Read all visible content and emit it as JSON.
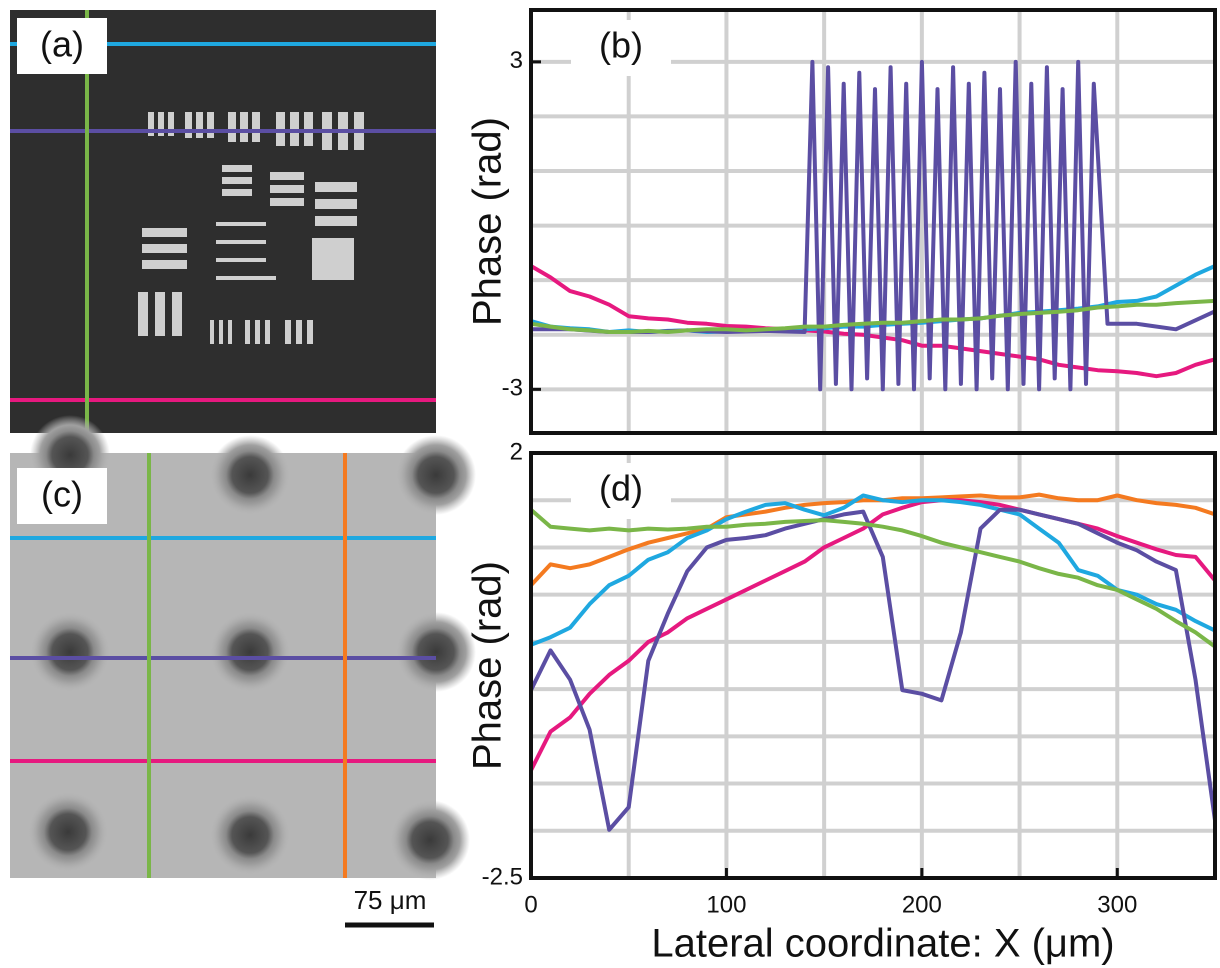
{
  "panels": {
    "a": {
      "label": "(a)"
    },
    "c": {
      "label": "(c)",
      "scale_bar": "75 μm"
    }
  },
  "chart_data": [
    {
      "type": "line",
      "label": "(b)",
      "ylabel": "Phase (rad)",
      "xlim": [
        0,
        350
      ],
      "ylim": [
        -3.8,
        3.95
      ],
      "yticks": [
        -3,
        3
      ],
      "xgrid": [
        0,
        50,
        100,
        150,
        200,
        250,
        300,
        350
      ],
      "ygrid": [
        -3,
        -2,
        -1,
        0,
        1,
        2,
        3
      ],
      "x": [
        0,
        10,
        20,
        30,
        40,
        50,
        60,
        70,
        80,
        90,
        100,
        110,
        120,
        130,
        140,
        150,
        160,
        170,
        180,
        190,
        200,
        210,
        220,
        230,
        240,
        250,
        260,
        270,
        280,
        290,
        300,
        310,
        320,
        330,
        340,
        350
      ],
      "series": [
        {
          "color": "#e6197f",
          "values": [
            -0.74,
            -0.95,
            -1.2,
            -1.3,
            -1.45,
            -1.66,
            -1.7,
            -1.72,
            -1.78,
            -1.8,
            -1.84,
            -1.85,
            -1.88,
            -1.9,
            -1.92,
            -1.94,
            -1.98,
            -2.0,
            -2.05,
            -2.1,
            -2.2,
            -2.2,
            -2.25,
            -2.3,
            -2.35,
            -2.4,
            -2.45,
            -2.55,
            -2.6,
            -2.65,
            -2.67,
            -2.7,
            -2.76,
            -2.7,
            -2.55,
            -2.45
          ]
        },
        {
          "color": "#1fa8e0",
          "values": [
            -1.75,
            -1.85,
            -1.88,
            -1.9,
            -1.95,
            -1.92,
            -1.95,
            -1.93,
            -1.92,
            -1.95,
            -1.94,
            -1.93,
            -1.92,
            -1.9,
            -1.9,
            -1.88,
            -1.85,
            -1.85,
            -1.82,
            -1.8,
            -1.78,
            -1.75,
            -1.72,
            -1.7,
            -1.65,
            -1.6,
            -1.58,
            -1.55,
            -1.52,
            -1.48,
            -1.4,
            -1.38,
            -1.3,
            -1.1,
            -0.9,
            -0.74
          ]
        },
        {
          "color": "#5b4ea3",
          "x": [
            0,
            20,
            40,
            60,
            80,
            100,
            120,
            140,
            144,
            148,
            152,
            156,
            160,
            164,
            168,
            172,
            176,
            180,
            184,
            188,
            192,
            196,
            200,
            204,
            208,
            212,
            216,
            220,
            224,
            228,
            232,
            236,
            240,
            244,
            248,
            252,
            256,
            260,
            264,
            268,
            272,
            276,
            280,
            284,
            288,
            295,
            310,
            330,
            350
          ],
          "values": [
            -1.9,
            -1.9,
            -1.95,
            -1.95,
            -1.92,
            -1.95,
            -1.93,
            -1.95,
            3,
            -3,
            2.9,
            -2.9,
            2.6,
            -3,
            2.8,
            -2.8,
            2.5,
            -3,
            2.9,
            -2.9,
            2.6,
            -3,
            3,
            -2.8,
            2.5,
            -3,
            2.9,
            -2.9,
            2.6,
            -3,
            2.8,
            -2.8,
            2.5,
            -3,
            3,
            -2.9,
            2.6,
            -3,
            2.9,
            -2.8,
            2.5,
            -3,
            3,
            -2.9,
            2.6,
            -1.8,
            -1.8,
            -1.9,
            -1.57
          ]
        },
        {
          "color": "#7ab648",
          "values": [
            -1.8,
            -1.85,
            -1.9,
            -1.92,
            -1.95,
            -1.95,
            -1.93,
            -1.95,
            -1.92,
            -1.9,
            -1.9,
            -1.92,
            -1.9,
            -1.88,
            -1.85,
            -1.85,
            -1.82,
            -1.8,
            -1.78,
            -1.78,
            -1.75,
            -1.72,
            -1.72,
            -1.7,
            -1.65,
            -1.62,
            -1.6,
            -1.58,
            -1.55,
            -1.5,
            -1.48,
            -1.45,
            -1.45,
            -1.42,
            -1.4,
            -1.38
          ]
        }
      ]
    },
    {
      "type": "line",
      "label": "(d)",
      "ylabel": "Phase (rad)",
      "xlabel": "Lateral coordinate: X (μm)",
      "xlim": [
        0,
        350
      ],
      "ylim": [
        -2.5,
        2
      ],
      "xticks": [
        0,
        100,
        200,
        300
      ],
      "yticks": [
        -2.5,
        2
      ],
      "xgrid": [
        0,
        50,
        100,
        150,
        200,
        250,
        300,
        350
      ],
      "ygrid": [
        -2,
        -1.5,
        -1,
        -0.5,
        0,
        0.5,
        1,
        1.5
      ],
      "x": [
        0,
        10,
        20,
        30,
        40,
        50,
        60,
        70,
        80,
        90,
        100,
        110,
        120,
        130,
        140,
        150,
        160,
        170,
        180,
        190,
        200,
        210,
        220,
        230,
        240,
        250,
        260,
        270,
        280,
        290,
        300,
        310,
        320,
        330,
        340,
        350
      ],
      "series": [
        {
          "color": "#f47a20",
          "values": [
            0.6,
            0.82,
            0.78,
            0.82,
            0.9,
            0.98,
            1.05,
            1.1,
            1.15,
            1.2,
            1.32,
            1.35,
            1.38,
            1.42,
            1.45,
            1.47,
            1.48,
            1.5,
            1.5,
            1.52,
            1.52,
            1.53,
            1.54,
            1.55,
            1.53,
            1.53,
            1.56,
            1.52,
            1.5,
            1.5,
            1.55,
            1.5,
            1.47,
            1.45,
            1.42,
            1.35
          ]
        },
        {
          "color": "#e6197f",
          "values": [
            -1.36,
            -0.95,
            -0.8,
            -0.55,
            -0.35,
            -0.2,
            0.0,
            0.1,
            0.25,
            0.35,
            0.45,
            0.55,
            0.65,
            0.75,
            0.85,
            1.0,
            1.1,
            1.2,
            1.35,
            1.42,
            1.48,
            1.5,
            1.5,
            1.48,
            1.45,
            1.4,
            1.35,
            1.3,
            1.25,
            1.2,
            1.12,
            1.05,
            0.98,
            0.92,
            0.9,
            0.65
          ]
        },
        {
          "color": "#1fa8e0",
          "values": [
            -0.03,
            0.05,
            0.15,
            0.4,
            0.6,
            0.7,
            0.87,
            0.95,
            1.1,
            1.18,
            1.3,
            1.38,
            1.45,
            1.47,
            1.4,
            1.34,
            1.42,
            1.55,
            1.5,
            1.48,
            1.5,
            1.5,
            1.48,
            1.45,
            1.4,
            1.35,
            1.2,
            1.05,
            0.76,
            0.7,
            0.55,
            0.5,
            0.4,
            0.34,
            0.22,
            0.12
          ]
        },
        {
          "color": "#5b4ea3",
          "values": [
            -0.51,
            -0.09,
            -0.4,
            -0.93,
            -1.99,
            -1.75,
            -0.2,
            0.3,
            0.75,
            1.0,
            1.08,
            1.1,
            1.13,
            1.2,
            1.25,
            1.3,
            1.35,
            1.38,
            0.9,
            -0.51,
            -0.55,
            -0.62,
            0.1,
            1.2,
            1.4,
            1.4,
            1.35,
            1.3,
            1.25,
            1.15,
            1.05,
            0.97,
            0.85,
            0.76,
            -0.4,
            -1.89
          ]
        },
        {
          "color": "#7ab648",
          "values": [
            1.4,
            1.22,
            1.2,
            1.18,
            1.2,
            1.18,
            1.2,
            1.19,
            1.2,
            1.22,
            1.22,
            1.24,
            1.25,
            1.27,
            1.28,
            1.29,
            1.27,
            1.25,
            1.22,
            1.18,
            1.12,
            1.05,
            1.0,
            0.95,
            0.9,
            0.85,
            0.78,
            0.72,
            0.68,
            0.6,
            0.55,
            0.45,
            0.35,
            0.22,
            0.1,
            -0.05
          ]
        }
      ]
    }
  ]
}
